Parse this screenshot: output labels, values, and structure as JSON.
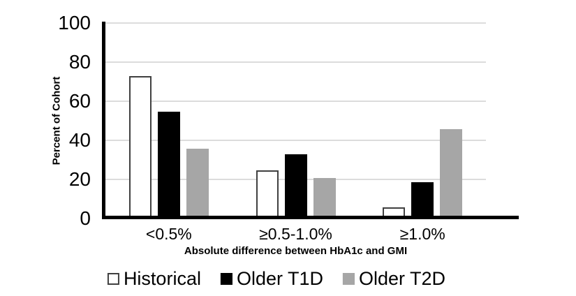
{
  "chart_data": {
    "type": "bar",
    "title": "",
    "categories": [
      "<0.5%",
      "≥0.5-1.0%",
      "≥1.0%"
    ],
    "series": [
      {
        "name": "Historical",
        "values": [
          72,
          24,
          5
        ],
        "fill": "#ffffff",
        "border": "#404040"
      },
      {
        "name": "Older T1D",
        "values": [
          54,
          32,
          18
        ],
        "fill": "#000000",
        "border": "#000000"
      },
      {
        "name": "Older T2D",
        "values": [
          35,
          20,
          45
        ],
        "fill": "#a6a6a6",
        "border": "#a6a6a6"
      }
    ],
    "xlabel": "Absolute difference between HbA1c and GMI",
    "ylabel": "Percent of Cohort",
    "ylim": [
      0,
      100
    ],
    "yticks": [
      0,
      20,
      40,
      60,
      80,
      100
    ],
    "grid": true,
    "legend_position": "bottom"
  },
  "colors": {
    "axis_line": "#000000",
    "gridline": "#dcdcdc",
    "text": "#000000",
    "background": "#ffffff"
  }
}
